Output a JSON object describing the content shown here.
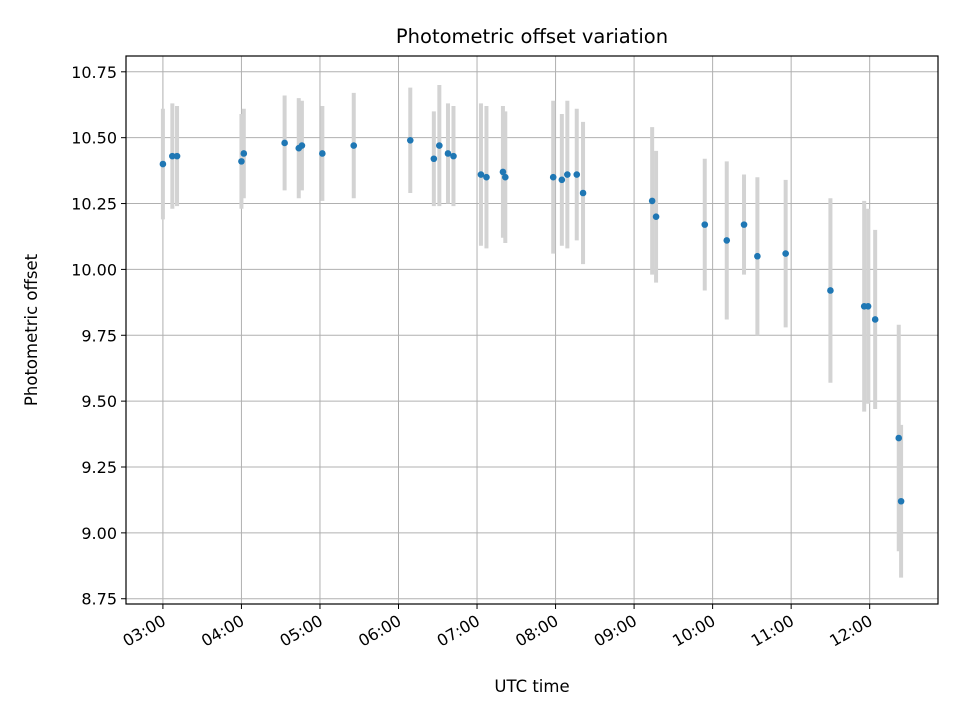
{
  "chart_data": {
    "type": "scatter",
    "title": "Photometric offset variation",
    "xlabel": "UTC time",
    "ylabel": "Photometric offset",
    "x_unit": "hours UTC",
    "xlim": [
      2.53,
      12.87
    ],
    "ylim": [
      8.73,
      10.81
    ],
    "x_ticks": [
      {
        "value": 3,
        "label": "03:00"
      },
      {
        "value": 4,
        "label": "04:00"
      },
      {
        "value": 5,
        "label": "05:00"
      },
      {
        "value": 6,
        "label": "06:00"
      },
      {
        "value": 7,
        "label": "07:00"
      },
      {
        "value": 8,
        "label": "08:00"
      },
      {
        "value": 9,
        "label": "09:00"
      },
      {
        "value": 10,
        "label": "10:00"
      },
      {
        "value": 11,
        "label": "11:00"
      },
      {
        "value": 12,
        "label": "12:00"
      }
    ],
    "y_ticks": [
      {
        "value": 8.75,
        "label": "8.75"
      },
      {
        "value": 9.0,
        "label": "9.00"
      },
      {
        "value": 9.25,
        "label": "9.25"
      },
      {
        "value": 9.5,
        "label": "9.50"
      },
      {
        "value": 9.75,
        "label": "9.75"
      },
      {
        "value": 10.0,
        "label": "10.00"
      },
      {
        "value": 10.25,
        "label": "10.25"
      },
      {
        "value": 10.5,
        "label": "10.50"
      },
      {
        "value": 10.75,
        "label": "10.75"
      }
    ],
    "grid": true,
    "marker_color": "#1f77b4",
    "errorbar_color": "#d3d3d3",
    "points": [
      {
        "x": 3.0,
        "y": 10.4,
        "err": 0.21
      },
      {
        "x": 3.12,
        "y": 10.43,
        "err": 0.2
      },
      {
        "x": 3.18,
        "y": 10.43,
        "err": 0.19
      },
      {
        "x": 4.0,
        "y": 10.41,
        "err": 0.18
      },
      {
        "x": 4.03,
        "y": 10.44,
        "err": 0.17
      },
      {
        "x": 4.55,
        "y": 10.48,
        "err": 0.18
      },
      {
        "x": 4.73,
        "y": 10.46,
        "err": 0.19
      },
      {
        "x": 4.77,
        "y": 10.47,
        "err": 0.17
      },
      {
        "x": 5.03,
        "y": 10.44,
        "err": 0.18
      },
      {
        "x": 5.43,
        "y": 10.47,
        "err": 0.2
      },
      {
        "x": 6.15,
        "y": 10.49,
        "err": 0.2
      },
      {
        "x": 6.45,
        "y": 10.42,
        "err": 0.18
      },
      {
        "x": 6.52,
        "y": 10.47,
        "err": 0.23
      },
      {
        "x": 6.63,
        "y": 10.44,
        "err": 0.19
      },
      {
        "x": 6.7,
        "y": 10.43,
        "err": 0.19
      },
      {
        "x": 7.05,
        "y": 10.36,
        "err": 0.27
      },
      {
        "x": 7.12,
        "y": 10.35,
        "err": 0.27
      },
      {
        "x": 7.33,
        "y": 10.37,
        "err": 0.25
      },
      {
        "x": 7.36,
        "y": 10.35,
        "err": 0.25
      },
      {
        "x": 7.97,
        "y": 10.35,
        "err": 0.29
      },
      {
        "x": 8.08,
        "y": 10.34,
        "err": 0.25
      },
      {
        "x": 8.15,
        "y": 10.36,
        "err": 0.28
      },
      {
        "x": 8.27,
        "y": 10.36,
        "err": 0.25
      },
      {
        "x": 8.35,
        "y": 10.29,
        "err": 0.27
      },
      {
        "x": 9.23,
        "y": 10.26,
        "err": 0.28
      },
      {
        "x": 9.28,
        "y": 10.2,
        "err": 0.25
      },
      {
        "x": 9.9,
        "y": 10.17,
        "err": 0.25
      },
      {
        "x": 10.18,
        "y": 10.11,
        "err": 0.3
      },
      {
        "x": 10.4,
        "y": 10.17,
        "err": 0.19
      },
      {
        "x": 10.57,
        "y": 10.05,
        "err": 0.3
      },
      {
        "x": 10.93,
        "y": 10.06,
        "err": 0.28
      },
      {
        "x": 11.5,
        "y": 9.92,
        "err": 0.35
      },
      {
        "x": 11.93,
        "y": 9.86,
        "err": 0.4
      },
      {
        "x": 11.98,
        "y": 9.86,
        "err": 0.37
      },
      {
        "x": 12.07,
        "y": 9.81,
        "err": 0.34
      },
      {
        "x": 12.37,
        "y": 9.36,
        "err": 0.43
      },
      {
        "x": 12.4,
        "y": 9.12,
        "err": 0.29
      }
    ]
  }
}
